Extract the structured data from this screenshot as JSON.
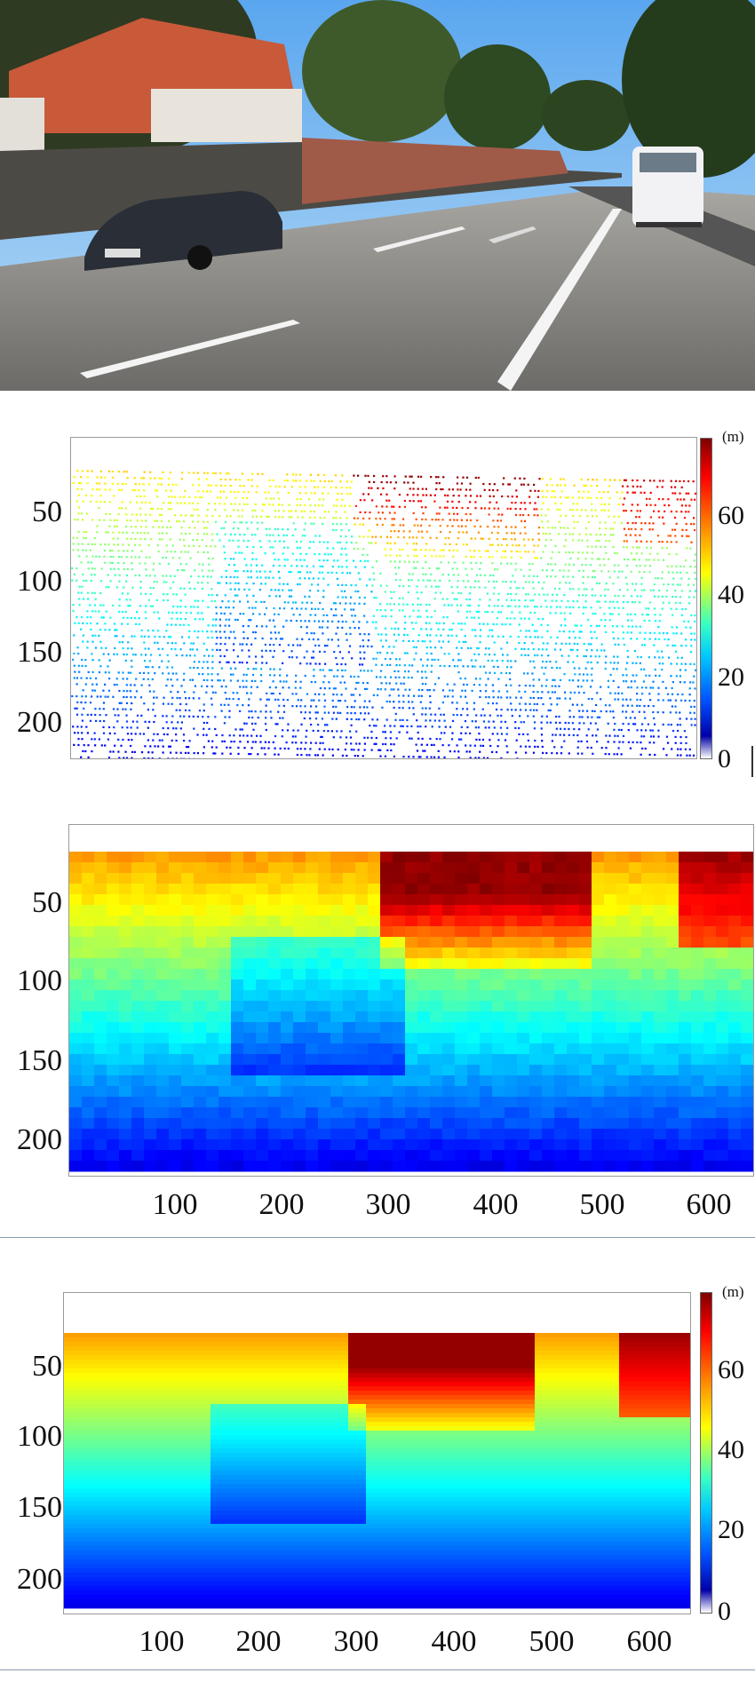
{
  "photo": {
    "description_icon": "street-scene-photo-icon"
  },
  "panels": [
    {
      "id": "sparse",
      "y_ticks": [
        "50",
        "100",
        "150",
        "200"
      ],
      "x_ticks": [],
      "colorbar": {
        "unit": "(m)",
        "ticks": [
          "60",
          "40",
          "20",
          "0"
        ]
      }
    },
    {
      "id": "coarse",
      "y_ticks": [
        "50",
        "100",
        "150",
        "200"
      ],
      "x_ticks": [
        "100",
        "200",
        "300",
        "400",
        "500",
        "600"
      ]
    },
    {
      "id": "dense",
      "y_ticks": [
        "50",
        "100",
        "150",
        "200"
      ],
      "x_ticks": [
        "100",
        "200",
        "300",
        "400",
        "500",
        "600"
      ],
      "colorbar": {
        "unit": "(m)",
        "ticks": [
          "60",
          "40",
          "20",
          "0"
        ]
      }
    }
  ],
  "colors": {
    "sky": "#7fb7e6",
    "road": "#8c8a86",
    "jet_low": "#1a2cff",
    "jet_mid": "#2ad3ff",
    "jet_high": "#ffe500",
    "jet_max": "#c40000"
  }
}
